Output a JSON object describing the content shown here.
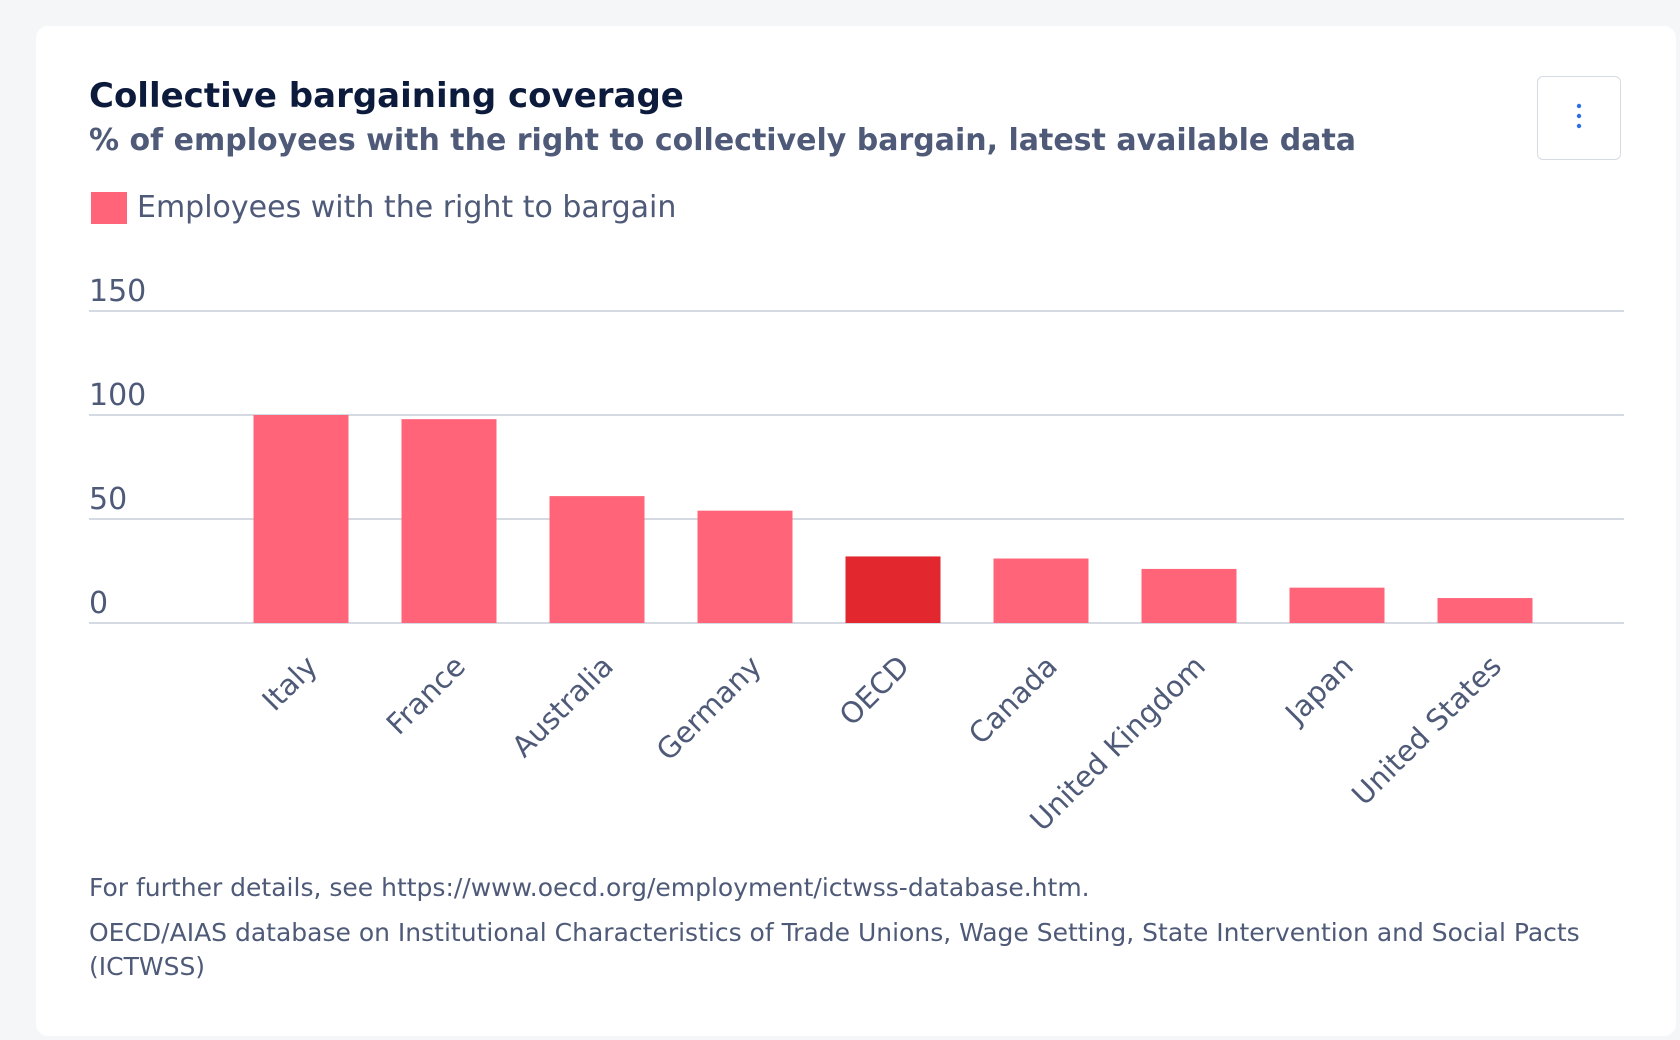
{
  "header": {
    "title": "Collective bargaining coverage",
    "subtitle": "% of employees with the right to collectively bargain, latest available data",
    "menu_icon": "⋮"
  },
  "legend": {
    "label": "Employees with the right to bargain",
    "color": "#ff6479"
  },
  "colors": {
    "bar": "#ff6479",
    "highlight": "#e2272f",
    "grid": "#c7ced8",
    "axis_text": "#4e5a78",
    "menu_icon": "#2f6fe4"
  },
  "chart_data": {
    "type": "bar",
    "title": "Collective bargaining coverage",
    "subtitle": "% of employees with the right to collectively bargain, latest available data",
    "categories": [
      "Italy",
      "France",
      "Australia",
      "Germany",
      "OECD",
      "Canada",
      "United Kingdom",
      "Japan",
      "United States"
    ],
    "series": [
      {
        "name": "Employees with the right to bargain",
        "values": [
          100,
          98,
          61,
          54,
          32,
          31,
          26,
          17,
          12
        ]
      }
    ],
    "highlight_category": "OECD",
    "ylim": [
      0,
      150
    ],
    "yticks": [
      0,
      50,
      100,
      150
    ],
    "grid": true,
    "legend_position": "top-left"
  },
  "footnotes": {
    "details": "For further details, see https://www.oecd.org/employment/ictwss-database.htm.",
    "source": "OECD/AIAS database on Institutional Characteristics of Trade Unions, Wage Setting, State Intervention and Social Pacts (ICTWSS)"
  }
}
